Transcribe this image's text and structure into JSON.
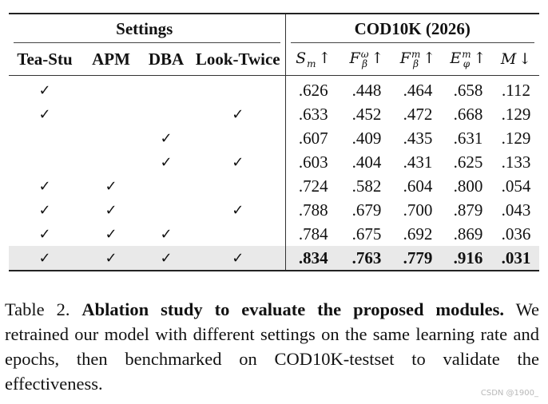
{
  "table": {
    "group_headers": [
      "Settings",
      "COD10K (2026)"
    ],
    "setting_columns": [
      "Tea-Stu",
      "APM",
      "DBA",
      "Look-Twice"
    ],
    "metric_columns": [
      {
        "symbol": "S",
        "sub": "m",
        "sup": "",
        "arrow": "↑"
      },
      {
        "symbol": "F",
        "sub": "β",
        "sup": "ω",
        "arrow": "↑"
      },
      {
        "symbol": "F",
        "sub": "β",
        "sup": "m",
        "arrow": "↑"
      },
      {
        "symbol": "E",
        "sub": "φ",
        "sup": "m",
        "arrow": "↑"
      },
      {
        "symbol": "M",
        "sub": "",
        "sup": "",
        "arrow": "↓"
      }
    ],
    "check_mark": "✓",
    "rows": [
      {
        "tea_stu": "✓",
        "apm": "",
        "dba": "",
        "look_twice": "",
        "values": [
          ".626",
          ".448",
          ".464",
          ".658",
          ".112"
        ]
      },
      {
        "tea_stu": "✓",
        "apm": "",
        "dba": "",
        "look_twice": "✓",
        "values": [
          ".633",
          ".452",
          ".472",
          ".668",
          ".129"
        ]
      },
      {
        "tea_stu": "",
        "apm": "",
        "dba": "✓",
        "look_twice": "",
        "values": [
          ".607",
          ".409",
          ".435",
          ".631",
          ".129"
        ]
      },
      {
        "tea_stu": "",
        "apm": "",
        "dba": "✓",
        "look_twice": "✓",
        "values": [
          ".603",
          ".404",
          ".431",
          ".625",
          ".133"
        ]
      },
      {
        "tea_stu": "✓",
        "apm": "✓",
        "dba": "",
        "look_twice": "",
        "values": [
          ".724",
          ".582",
          ".604",
          ".800",
          ".054"
        ]
      },
      {
        "tea_stu": "✓",
        "apm": "✓",
        "dba": "",
        "look_twice": "✓",
        "values": [
          ".788",
          ".679",
          ".700",
          ".879",
          ".043"
        ]
      },
      {
        "tea_stu": "✓",
        "apm": "✓",
        "dba": "✓",
        "look_twice": "",
        "values": [
          ".784",
          ".675",
          ".692",
          ".869",
          ".036"
        ]
      },
      {
        "tea_stu": "✓",
        "apm": "✓",
        "dba": "✓",
        "look_twice": "✓",
        "values": [
          ".834",
          ".763",
          ".779",
          ".916",
          ".031"
        ],
        "highlight": true
      }
    ]
  },
  "caption": {
    "label": "Table 2.",
    "title": "Ablation study to evaluate the proposed modules.",
    "body": "We retrained our model with different settings on the same learning rate and epochs, then benchmarked on COD10K-testset to validate the effectiveness."
  },
  "watermark": "CSDN @1900_"
}
